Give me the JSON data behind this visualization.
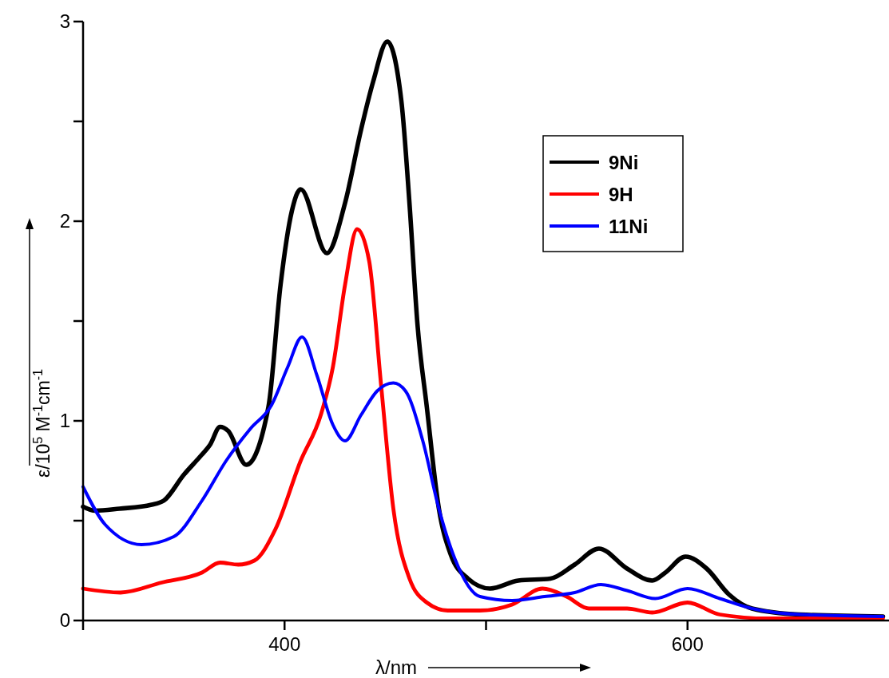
{
  "chart_data": {
    "type": "line",
    "xlabel": "λ/nm",
    "ylabel": "ε/10$^{5}$ M$^{-1}$cm$^{-1}$",
    "xlim": [
      300,
      700
    ],
    "ylim": [
      0,
      3
    ],
    "xticks": [
      {
        "value": 300,
        "label": null
      },
      400,
      {
        "value": 500,
        "label": null
      },
      600
    ],
    "yticks": [
      0,
      {
        "value": 0.5,
        "label": null
      },
      1,
      {
        "value": 1.5,
        "label": null
      },
      2,
      {
        "value": 2.5,
        "label": null
      },
      3
    ],
    "grid": false,
    "legend": "top right",
    "marker": "none",
    "line_style": "solid",
    "series": [
      {
        "name": "9Ni",
        "color": "#000000",
        "x": [
          300,
          306,
          318,
          334,
          340,
          350,
          358,
          363,
          368,
          372,
          381,
          392,
          398,
          403.6,
          408,
          421,
          430,
          438,
          444,
          451,
          458,
          462,
          466,
          470.6,
          476.6,
          482.5,
          491,
          502,
          516,
          532,
          544,
          556,
          570,
          582.5,
          589,
          599,
          609.5,
          620.6,
          632,
          655.6,
          697
        ],
        "values": [
          0.57,
          0.55,
          0.56,
          0.58,
          0.6,
          0.73,
          0.82,
          0.88,
          0.97,
          0.95,
          0.78,
          1.07,
          1.68,
          2.05,
          2.16,
          1.84,
          2.09,
          2.46,
          2.7,
          2.9,
          2.6,
          2.09,
          1.48,
          1.07,
          0.56,
          0.33,
          0.21,
          0.16,
          0.2,
          0.21,
          0.28,
          0.36,
          0.26,
          0.2,
          0.24,
          0.32,
          0.26,
          0.13,
          0.06,
          0.03,
          0.02
        ]
      },
      {
        "name": "9H",
        "color": "#ff0000",
        "x": [
          300,
          318.6,
          339,
          359,
          368,
          377,
          385,
          395.6,
          408,
          418,
          424,
          430,
          436,
          442,
          448,
          454,
          462,
          470.6,
          481,
          497,
          513,
          528,
          540,
          551,
          570,
          582.5,
          600,
          616,
          640,
          697
        ],
        "values": [
          0.16,
          0.14,
          0.19,
          0.24,
          0.29,
          0.28,
          0.3,
          0.46,
          0.8,
          1.03,
          1.27,
          1.68,
          1.96,
          1.8,
          1.17,
          0.56,
          0.21,
          0.09,
          0.05,
          0.05,
          0.08,
          0.16,
          0.12,
          0.06,
          0.06,
          0.04,
          0.09,
          0.03,
          0.01,
          0.01
        ]
      },
      {
        "name": "11Ni",
        "color": "#0000ff",
        "x": [
          300,
          311,
          329,
          345,
          359,
          371,
          383,
          393.6,
          401.6,
          408.7,
          416,
          424,
          430,
          438,
          446,
          454,
          460,
          468.6,
          476.6,
          484.5,
          497,
          513,
          529,
          544,
          557,
          570,
          584,
          600,
          616,
          632,
          656,
          697
        ],
        "values": [
          0.67,
          0.48,
          0.38,
          0.42,
          0.6,
          0.8,
          0.96,
          1.08,
          1.27,
          1.42,
          1.23,
          0.98,
          0.9,
          1.03,
          1.15,
          1.19,
          1.15,
          0.9,
          0.56,
          0.31,
          0.12,
          0.1,
          0.12,
          0.14,
          0.18,
          0.15,
          0.11,
          0.16,
          0.11,
          0.06,
          0.03,
          0.02
        ]
      }
    ]
  }
}
